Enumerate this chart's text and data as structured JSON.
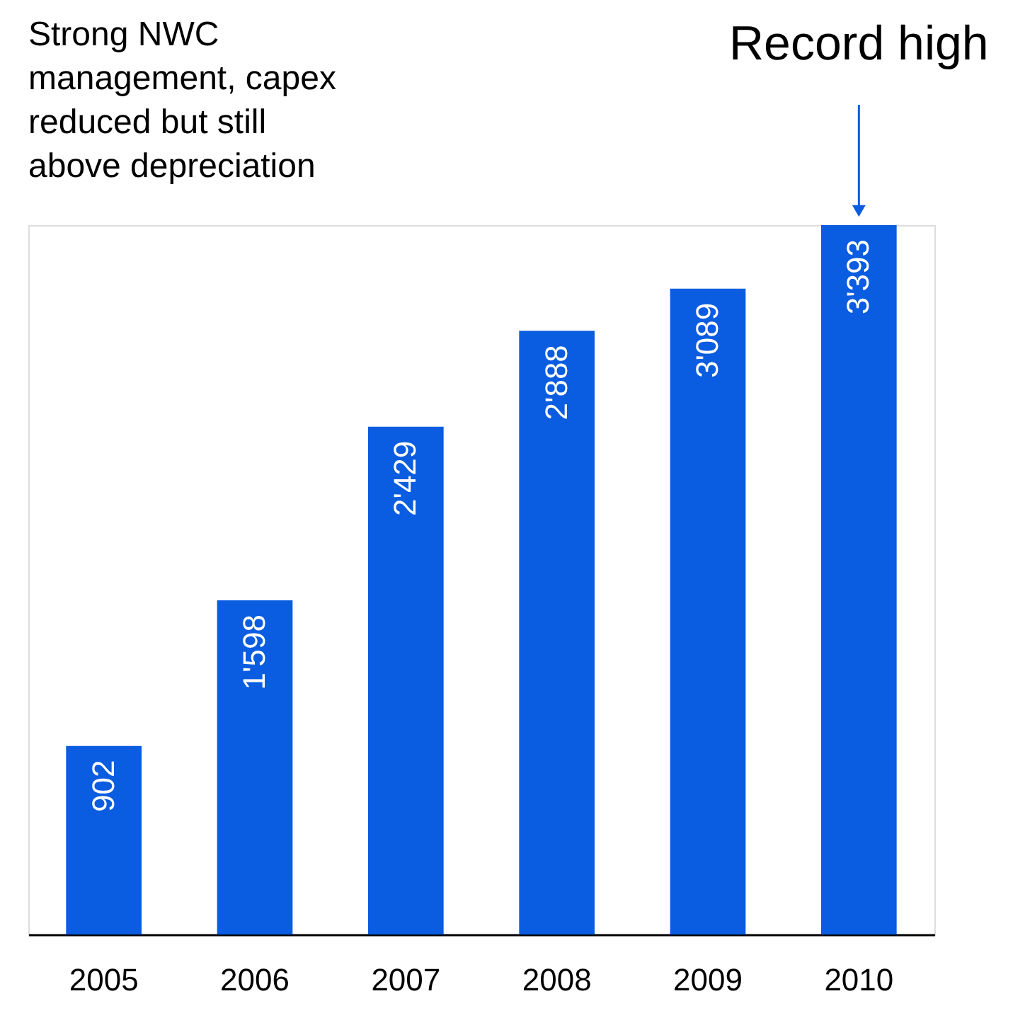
{
  "chart_data": {
    "type": "bar",
    "categories": [
      "2005",
      "2006",
      "2007",
      "2008",
      "2009",
      "2010"
    ],
    "values": [
      902,
      1598,
      2429,
      2888,
      3089,
      3393
    ],
    "value_labels": [
      "902",
      "1'598",
      "2'429",
      "2'888",
      "3'089",
      "3'393"
    ],
    "color": "#0a5ce0",
    "ylim": [
      0,
      3393
    ],
    "grid": false,
    "tick_labels": "x",
    "data_labels": false,
    "annotations": [
      "Strong NWC management, capex reduced but still above depreciation",
      "Record high"
    ]
  }
}
